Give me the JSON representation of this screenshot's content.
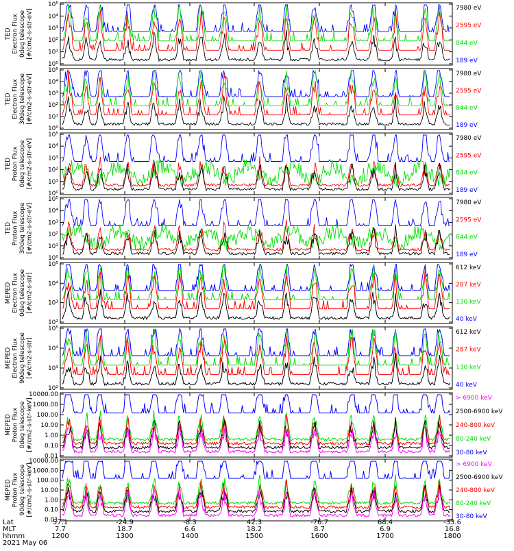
{
  "panels": [
    {
      "ylabel_lines": [
        "TED",
        "Electron Flux",
        "0deg telescope",
        "[#/cm2-s-str-eV]"
      ],
      "ticks": [
        "10⁰",
        "10¹",
        "10²",
        "10³",
        "10⁴",
        "10⁵"
      ],
      "legend": [
        {
          "text": "7980 eV",
          "color": "#000000"
        },
        {
          "text": "2595 eV",
          "color": "#ff0000"
        },
        {
          "text": "844 eV",
          "color": "#00dd00"
        },
        {
          "text": "189 eV",
          "color": "#0000ff"
        }
      ]
    },
    {
      "ylabel_lines": [
        "TED",
        "Electron Flux",
        "30deg telescope",
        "[#/cm2-s-str-eV]"
      ],
      "ticks": [
        "10⁰",
        "10¹",
        "10²",
        "10³",
        "10⁴",
        "10⁵"
      ],
      "legend": [
        {
          "text": "7980 eV",
          "color": "#000000"
        },
        {
          "text": "2595 eV",
          "color": "#ff0000"
        },
        {
          "text": "844 eV",
          "color": "#00dd00"
        },
        {
          "text": "189 eV",
          "color": "#0000ff"
        }
      ]
    },
    {
      "ylabel_lines": [
        "TED",
        "Proton Flux",
        "0deg telescope",
        "[#/cm2-s-str-eV]"
      ],
      "ticks": [
        "10⁰",
        "10¹",
        "10²",
        "10³",
        "10⁴",
        "10⁵"
      ],
      "legend": [
        {
          "text": "7980 eV",
          "color": "#000000"
        },
        {
          "text": "2595 eV",
          "color": "#ff0000"
        },
        {
          "text": "844 eV",
          "color": "#00dd00"
        },
        {
          "text": "189 eV",
          "color": "#0000ff"
        }
      ]
    },
    {
      "ylabel_lines": [
        "TED",
        "Proton Flux",
        "30deg telescope",
        "[#/cm2-s-str-eV]"
      ],
      "ticks": [
        "10⁰",
        "10¹",
        "10²",
        "10³",
        "10⁴",
        "10⁵"
      ],
      "legend": [
        {
          "text": "7980 eV",
          "color": "#000000"
        },
        {
          "text": "2595 eV",
          "color": "#ff0000"
        },
        {
          "text": "844 eV",
          "color": "#00dd00"
        },
        {
          "text": "189 eV",
          "color": "#0000ff"
        }
      ]
    },
    {
      "ylabel_lines": [
        "MEPED",
        "Electron Flux",
        "0deg telescope",
        "[#/cm2-s-str]"
      ],
      "ticks": [
        "10²",
        "10³",
        "10⁴",
        "10⁵"
      ],
      "legend": [
        {
          "text": "612 keV",
          "color": "#000000"
        },
        {
          "text": "287 keV",
          "color": "#ff0000"
        },
        {
          "text": "130 keV",
          "color": "#00dd00"
        },
        {
          "text": "40 keV",
          "color": "#0000ff"
        }
      ]
    },
    {
      "ylabel_lines": [
        "MEPED",
        "Electron Flux",
        "90deg telescope",
        "[#/cm2-s-str]"
      ],
      "ticks": [
        "10²",
        "10³",
        "10⁴",
        "10⁵"
      ],
      "legend": [
        {
          "text": "612 keV",
          "color": "#000000"
        },
        {
          "text": "287 keV",
          "color": "#ff0000"
        },
        {
          "text": "130 keV",
          "color": "#00dd00"
        },
        {
          "text": "40 keV",
          "color": "#0000ff"
        }
      ]
    },
    {
      "ylabel_lines": [
        "MEPED",
        "Proton Flux",
        "0deg telescope",
        "[#/cm2-s-str-keV]"
      ],
      "ticks": [
        "0.01",
        "0.10",
        "1.00",
        "10.00",
        "100.00",
        "1000.00",
        "10000.00"
      ],
      "legend": [
        {
          "text": "> 6900 keV",
          "color": "#ff00ff"
        },
        {
          "text": "2500-6900 keV",
          "color": "#000000"
        },
        {
          "text": "240-800 keV",
          "color": "#ff0000"
        },
        {
          "text": "80-240 keV",
          "color": "#00dd00"
        },
        {
          "text": "30-80 keV",
          "color": "#0000ff"
        }
      ]
    },
    {
      "ylabel_lines": [
        "MEPED",
        "Proton Flux",
        "90deg telescope",
        "[#/cm2-s-str-keV]"
      ],
      "ticks": [
        "0.01",
        "0.10",
        "1.00",
        "10.00",
        "100.00",
        "1000.00",
        "10000.00"
      ],
      "legend": [
        {
          "text": "> 6900 keV",
          "color": "#ff00ff"
        },
        {
          "text": "2500-6900 keV",
          "color": "#000000"
        },
        {
          "text": "240-800 keV",
          "color": "#ff0000"
        },
        {
          "text": "80-240 keV",
          "color": "#00dd00"
        },
        {
          "text": "30-80 keV",
          "color": "#0000ff"
        }
      ]
    }
  ],
  "xaxis": {
    "row_labels": [
      "Lat",
      "MLT",
      "hhmm"
    ],
    "lat": [
      "57.1",
      "-24.9",
      "-8.3",
      "42.3",
      "-76.7",
      "68.4",
      "-33.6"
    ],
    "mlt": [
      "7.7",
      "18.7",
      "6.6",
      "18.2",
      "8.7",
      "6.9",
      "16.8"
    ],
    "hhmm": [
      "1200",
      "1300",
      "1400",
      "1500",
      "1600",
      "1700",
      "1800"
    ],
    "date": "2021 May 06"
  },
  "chart_data": {
    "type": "line",
    "x_label": "hhmm",
    "x": [
      "1200",
      "1300",
      "1400",
      "1500",
      "1600",
      "1700",
      "1800"
    ],
    "panels": [
      {
        "name": "TED Electron Flux 0deg telescope",
        "y_scale": "log",
        "ylim": [
          1,
          100000
        ],
        "series": [
          "7980 eV",
          "2595 eV",
          "844 eV",
          "189 eV"
        ]
      },
      {
        "name": "TED Electron Flux 30deg telescope",
        "y_scale": "log",
        "ylim": [
          1,
          100000
        ],
        "series": [
          "7980 eV",
          "2595 eV",
          "844 eV",
          "189 eV"
        ]
      },
      {
        "name": "TED Proton Flux 0deg telescope",
        "y_scale": "log",
        "ylim": [
          1,
          100000
        ],
        "series": [
          "7980 eV",
          "2595 eV",
          "844 eV",
          "189 eV"
        ]
      },
      {
        "name": "TED Proton Flux 30deg telescope",
        "y_scale": "log",
        "ylim": [
          1,
          100000
        ],
        "series": [
          "7980 eV",
          "2595 eV",
          "844 eV",
          "189 eV"
        ]
      },
      {
        "name": "MEPED Electron Flux 0deg telescope",
        "y_scale": "log",
        "ylim": [
          100,
          100000
        ],
        "series": [
          "612 keV",
          "287 keV",
          "130 keV",
          "40 keV"
        ]
      },
      {
        "name": "MEPED Electron Flux 90deg telescope",
        "y_scale": "log",
        "ylim": [
          100,
          100000
        ],
        "series": [
          "612 keV",
          "287 keV",
          "130 keV",
          "40 keV"
        ]
      },
      {
        "name": "MEPED Proton Flux 0deg telescope",
        "y_scale": "log",
        "ylim": [
          0.01,
          10000
        ],
        "series": [
          "> 6900 keV",
          "2500-6900 keV",
          "240-800 keV",
          "80-240 keV",
          "30-80 keV"
        ]
      },
      {
        "name": "MEPED Proton Flux 90deg telescope",
        "y_scale": "log",
        "ylim": [
          0.01,
          10000
        ],
        "series": [
          "> 6900 keV",
          "2500-6900 keV",
          "240-800 keV",
          "80-240 keV",
          "30-80 keV"
        ]
      }
    ],
    "pass_times_hhmm": [
      "1213",
      "1233",
      "1306",
      "1333",
      "1406",
      "1430",
      "1500",
      "1533",
      "1600",
      "1633",
      "1706",
      "1733",
      "1800"
    ]
  }
}
